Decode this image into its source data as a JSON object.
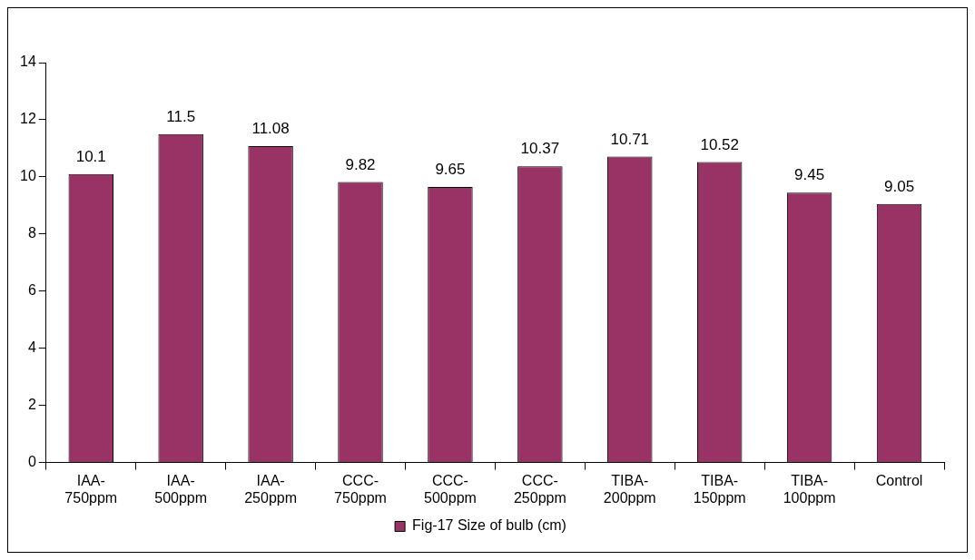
{
  "chart_data": {
    "type": "bar",
    "categories": [
      "IAA-750ppm",
      "IAA-500ppm",
      "IAA-250ppm",
      "CCC-750ppm",
      "CCC-500ppm",
      "CCC-250ppm",
      "TIBA-200ppm",
      "TIBA-150ppm",
      "TIBA-100ppm",
      "Control"
    ],
    "series": [
      {
        "name": "Fig-17 Size of bulb (cm)",
        "color": "#993366",
        "values": [
          10.1,
          11.5,
          11.08,
          9.82,
          9.65,
          10.37,
          10.71,
          10.52,
          9.45,
          9.05
        ]
      }
    ],
    "ylim": [
      0,
      14
    ],
    "yticks": [
      0,
      2,
      4,
      6,
      8,
      10,
      12,
      14
    ],
    "grid": false,
    "legend": "bottom",
    "data_labels": true
  }
}
